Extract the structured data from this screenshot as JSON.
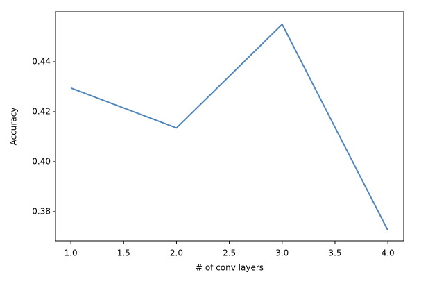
{
  "chart_data": {
    "type": "line",
    "x_label": "# of conv layers",
    "y_label": "Accuracy",
    "x": [
      1,
      2,
      3,
      4
    ],
    "series": [
      {
        "color": "#4f86bc",
        "values": [
          0.4295,
          0.4135,
          0.455,
          0.3725
        ]
      }
    ],
    "xlim": [
      0.855,
      4.15
    ],
    "xticks": [
      {
        "value": 1,
        "label": "1.0"
      },
      {
        "value": 1.5,
        "label": "1.5"
      },
      {
        "value": 2,
        "label": "2.0"
      },
      {
        "value": 2.5,
        "label": "2.5"
      },
      {
        "value": 3,
        "label": "3.0"
      },
      {
        "value": 3.5,
        "label": "3.5"
      },
      {
        "value": 4,
        "label": "4.0"
      }
    ],
    "ylim": [
      0.3683,
      0.46
    ],
    "yticks": [
      0.38,
      {
        "value": 0.4,
        "label": "0.40"
      },
      0.42,
      0.44
    ],
    "grid": false
  }
}
